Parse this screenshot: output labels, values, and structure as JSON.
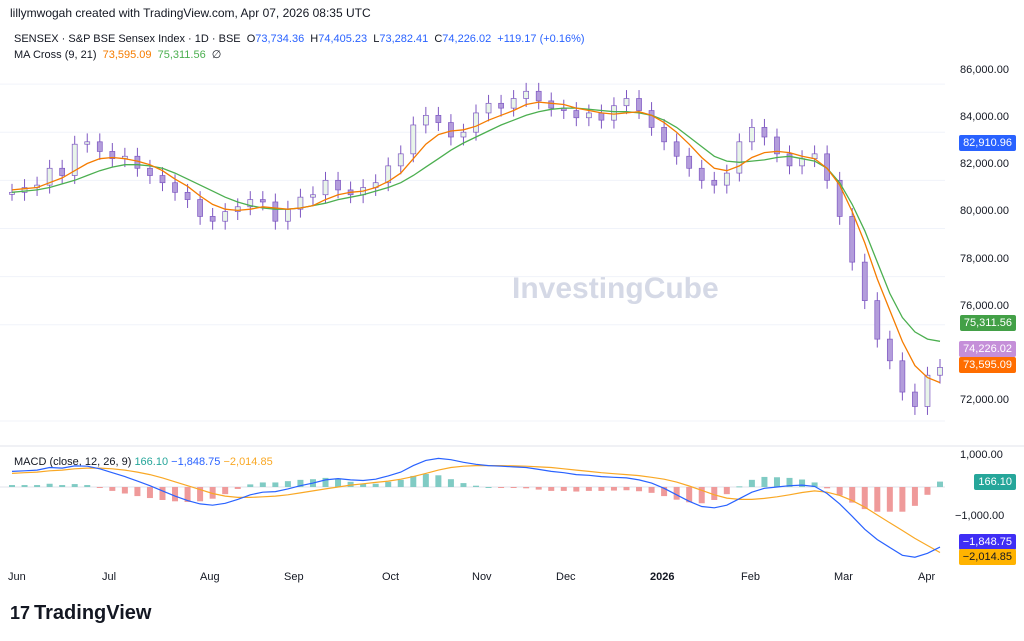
{
  "header": {
    "created": "lillymwogah created with TradingView.com, Apr 07, 2026 08:35 UTC"
  },
  "legend": {
    "symbol": "SENSEX · S&P BSE Sensex Index · 1D · BSE",
    "open_label": "O",
    "open": "73,734.36",
    "high_label": "H",
    "high": "74,405.23",
    "low_label": "L",
    "low": "73,282.41",
    "close_label": "C",
    "close": "74,226.02",
    "change": "+119.17 (+0.16%)",
    "ma_label": "MA Cross (9, 21)",
    "ma9": "73,595.09",
    "ma21": "75,311.56",
    "ma_icon": "∅"
  },
  "macd_legend": {
    "label": "MACD (close, 12, 26, 9)",
    "hist": "166.10",
    "macd": "−1,848.75",
    "signal": "−2,014.85"
  },
  "price_axis": [
    "86,000.00",
    "84,000.00",
    "82,000.00",
    "80,000.00",
    "78,000.00",
    "76,000.00",
    "72,000.00"
  ],
  "macd_axis": [
    "1,000.00",
    "−1,000.00"
  ],
  "x_axis": [
    "Jun",
    "Jul",
    "Aug",
    "Sep",
    "Oct",
    "Nov",
    "Dec",
    "2026",
    "Feb",
    "Mar",
    "Apr"
  ],
  "tags": {
    "level": "82,910.96",
    "ma21": "75,311.56",
    "close": "74,226.02",
    "ma9": "73,595.09",
    "hist": "166.10",
    "macd": "−1,848.75",
    "signal": "−2,014.85"
  },
  "colors": {
    "up": "#26a69a",
    "down": "#ef5350",
    "ma9": "#f57c00",
    "ma21": "#4caf50",
    "macd": "#2962ff",
    "signal": "#f9a825",
    "candle": "#b39ddb"
  },
  "watermark": "InvestingCube",
  "brand": "TradingView",
  "chart_data": {
    "type": "line",
    "title": "SENSEX · S&P BSE Sensex Index · 1D · BSE",
    "ylim": [
      71000,
      87000
    ],
    "ticks_y": [
      72000,
      76000,
      78000,
      80000,
      82000,
      84000,
      86000
    ],
    "months": [
      "Jun",
      "Jul",
      "Aug",
      "Sep",
      "Oct",
      "Nov",
      "Dec",
      "2026",
      "Feb",
      "Mar",
      "Apr"
    ],
    "close": [
      81500,
      81700,
      81800,
      82500,
      82200,
      83500,
      83600,
      83200,
      82900,
      83000,
      82500,
      82200,
      81900,
      81500,
      81200,
      80500,
      80300,
      80700,
      80900,
      81200,
      81100,
      80300,
      80800,
      81300,
      81400,
      82000,
      81600,
      81400,
      81700,
      81900,
      82600,
      83100,
      84300,
      84700,
      84400,
      83800,
      84000,
      84800,
      85200,
      85000,
      85400,
      85700,
      85300,
      85000,
      84900,
      84600,
      84800,
      84500,
      85100,
      85400,
      84900,
      84200,
      83600,
      83000,
      82500,
      82000,
      81800,
      82300,
      83600,
      84200,
      83800,
      83100,
      82600,
      82900,
      83100,
      82000,
      80500,
      78600,
      77000,
      75400,
      74500,
      73200,
      72600,
      73900,
      74226
    ],
    "ma9": [
      81600,
      81650,
      81700,
      81900,
      82100,
      82400,
      82700,
      82900,
      82950,
      82900,
      82800,
      82650,
      82400,
      82050,
      81750,
      81350,
      81000,
      80800,
      80750,
      80800,
      80900,
      80850,
      80800,
      80850,
      80950,
      81200,
      81400,
      81500,
      81550,
      81700,
      81950,
      82300,
      82900,
      83500,
      83900,
      84050,
      84100,
      84250,
      84500,
      84700,
      84900,
      85150,
      85250,
      85200,
      85150,
      85000,
      84900,
      84800,
      84750,
      84800,
      84850,
      84700,
      84400,
      84000,
      83500,
      82950,
      82500,
      82400,
      82600,
      82950,
      83150,
      83200,
      83150,
      83000,
      82900,
      82500,
      81800,
      80700,
      79400,
      77900,
      76600,
      75300,
      74300,
      73800,
      73595
    ],
    "ma21": [
      81500,
      81550,
      81600,
      81700,
      81850,
      82000,
      82200,
      82400,
      82550,
      82650,
      82650,
      82600,
      82500,
      82300,
      82050,
      81800,
      81550,
      81300,
      81100,
      80950,
      80850,
      80800,
      80800,
      80850,
      80950,
      81050,
      81200,
      81300,
      81400,
      81550,
      81700,
      81900,
      82200,
      82550,
      82900,
      83250,
      83550,
      83800,
      84050,
      84300,
      84500,
      84700,
      84850,
      84950,
      85000,
      85000,
      84950,
      84900,
      84850,
      84850,
      84800,
      84700,
      84500,
      84200,
      83800,
      83400,
      83000,
      82800,
      82750,
      82800,
      82850,
      82950,
      83000,
      82900,
      82800,
      82500,
      81900,
      81000,
      79900,
      78600,
      77300,
      76300,
      75700,
      75400,
      75311
    ],
    "macd": [
      480,
      500,
      520,
      600,
      580,
      650,
      640,
      560,
      440,
      320,
      180,
      40,
      -120,
      -280,
      -420,
      -520,
      -560,
      -500,
      -380,
      -240,
      -160,
      -140,
      -60,
      40,
      120,
      220,
      260,
      220,
      200,
      240,
      340,
      460,
      660,
      820,
      880,
      840,
      760,
      700,
      660,
      640,
      620,
      600,
      540,
      480,
      440,
      380,
      360,
      320,
      300,
      280,
      220,
      120,
      -40,
      -240,
      -440,
      -600,
      -640,
      -560,
      -360,
      -160,
      -40,
      0,
      40,
      60,
      20,
      -200,
      -520,
      -900,
      -1300,
      -1620,
      -1860,
      -2100,
      -2160,
      -2040,
      -1848
    ],
    "signal": [
      420,
      440,
      460,
      500,
      520,
      560,
      580,
      580,
      560,
      520,
      460,
      380,
      280,
      160,
      40,
      -80,
      -200,
      -280,
      -320,
      -320,
      -300,
      -280,
      -240,
      -180,
      -120,
      -60,
      0,
      60,
      100,
      140,
      180,
      240,
      320,
      420,
      520,
      600,
      640,
      660,
      660,
      660,
      650,
      640,
      620,
      600,
      560,
      520,
      480,
      440,
      410,
      380,
      350,
      300,
      240,
      150,
      30,
      -100,
      -240,
      -340,
      -380,
      -380,
      -350,
      -300,
      -240,
      -170,
      -120,
      -160,
      -260,
      -420,
      -620,
      -860,
      -1100,
      -1340,
      -1580,
      -1800,
      -2014
    ]
  }
}
